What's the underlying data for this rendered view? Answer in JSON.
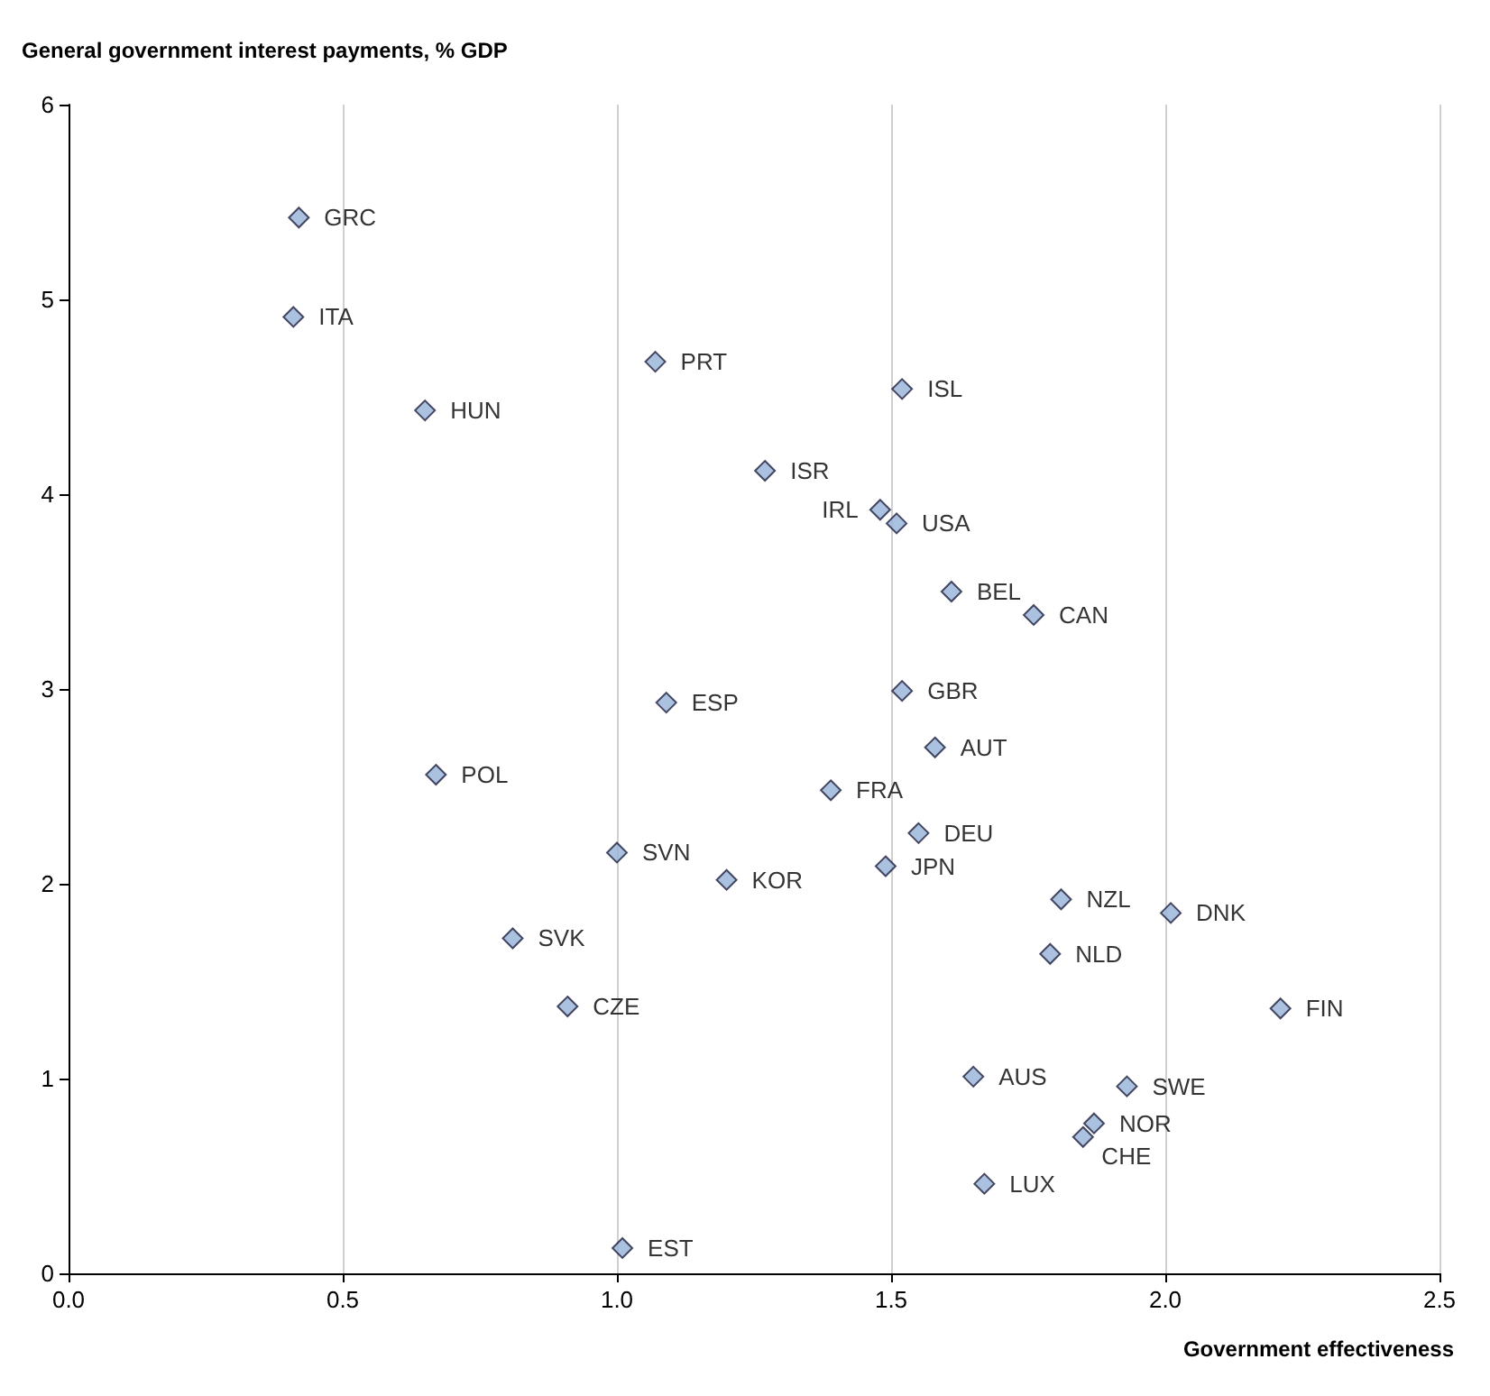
{
  "chart_data": {
    "type": "scatter",
    "ylabel": "General government interest payments, % GDP",
    "xlabel": "Government effectiveness",
    "marker": "diamond",
    "grid": "x",
    "xlim": [
      0,
      2.5
    ],
    "xticks": [
      {
        "value": 0,
        "label": "0.0"
      },
      {
        "value": 0.5,
        "label": "0.5"
      },
      {
        "value": 1,
        "label": "1.0"
      },
      {
        "value": 1.5,
        "label": "1.5"
      },
      {
        "value": 2,
        "label": "2.0"
      },
      {
        "value": 2.5,
        "label": "2.5"
      }
    ],
    "ylim": [
      0,
      6
    ],
    "yticks": [
      0,
      1,
      2,
      3,
      4,
      5,
      6
    ],
    "series": [
      {
        "color": "#95b3d7",
        "x": [
          0.42,
          0.41,
          0.65,
          1.07,
          1.52,
          1.27,
          1.48,
          1.51,
          1.61,
          1.76,
          1.09,
          1.52,
          1.58,
          0.67,
          1.39,
          1.55,
          1.0,
          1.2,
          1.49,
          1.81,
          2.01,
          0.81,
          1.79,
          0.91,
          2.21,
          1.65,
          1.93,
          1.87,
          1.85,
          1.67,
          1.01
        ],
        "values": [
          5.42,
          4.91,
          4.43,
          4.68,
          4.54,
          4.12,
          3.92,
          3.85,
          3.5,
          3.38,
          2.93,
          2.99,
          2.7,
          2.56,
          2.48,
          2.26,
          2.16,
          2.02,
          2.09,
          1.92,
          1.85,
          1.72,
          1.64,
          1.37,
          1.36,
          1.01,
          0.96,
          0.77,
          0.7,
          0.46,
          0.13
        ]
      }
    ],
    "annotations": [
      {
        "text": "GRC",
        "x": 0.42,
        "y": 5.42
      },
      {
        "text": "ITA",
        "x": 0.41,
        "y": 4.91
      },
      {
        "text": "HUN",
        "x": 0.65,
        "y": 4.43
      },
      {
        "text": "PRT",
        "x": 1.07,
        "y": 4.68
      },
      {
        "text": "ISL",
        "x": 1.52,
        "y": 4.54
      },
      {
        "text": "ISR",
        "x": 1.27,
        "y": 4.12
      },
      {
        "text": "IRL",
        "x": 1.48,
        "y": 3.92
      },
      {
        "text": "USA",
        "x": 1.51,
        "y": 3.85
      },
      {
        "text": "BEL",
        "x": 1.61,
        "y": 3.5
      },
      {
        "text": "CAN",
        "x": 1.76,
        "y": 3.38
      },
      {
        "text": "ESP",
        "x": 1.09,
        "y": 2.93
      },
      {
        "text": "GBR",
        "x": 1.52,
        "y": 2.99
      },
      {
        "text": "AUT",
        "x": 1.58,
        "y": 2.7
      },
      {
        "text": "POL",
        "x": 0.67,
        "y": 2.56
      },
      {
        "text": "FRA",
        "x": 1.39,
        "y": 2.48
      },
      {
        "text": "DEU",
        "x": 1.55,
        "y": 2.26
      },
      {
        "text": "SVN",
        "x": 1.0,
        "y": 2.16
      },
      {
        "text": "KOR",
        "x": 1.2,
        "y": 2.02
      },
      {
        "text": "JPN",
        "x": 1.49,
        "y": 2.09
      },
      {
        "text": "NZL",
        "x": 1.81,
        "y": 1.92
      },
      {
        "text": "DNK",
        "x": 2.01,
        "y": 1.85
      },
      {
        "text": "SVK",
        "x": 0.81,
        "y": 1.72
      },
      {
        "text": "NLD",
        "x": 1.79,
        "y": 1.64
      },
      {
        "text": "CZE",
        "x": 0.91,
        "y": 1.37
      },
      {
        "text": "FIN",
        "x": 2.21,
        "y": 1.36
      },
      {
        "text": "AUS",
        "x": 1.65,
        "y": 1.01
      },
      {
        "text": "SWE",
        "x": 1.93,
        "y": 0.96
      },
      {
        "text": "NOR",
        "x": 1.87,
        "y": 0.77
      },
      {
        "text": "CHE",
        "x": 1.85,
        "y": 0.7
      },
      {
        "text": "LUX",
        "x": 1.67,
        "y": 0.46
      },
      {
        "text": "EST",
        "x": 1.01,
        "y": 0.13
      }
    ]
  }
}
